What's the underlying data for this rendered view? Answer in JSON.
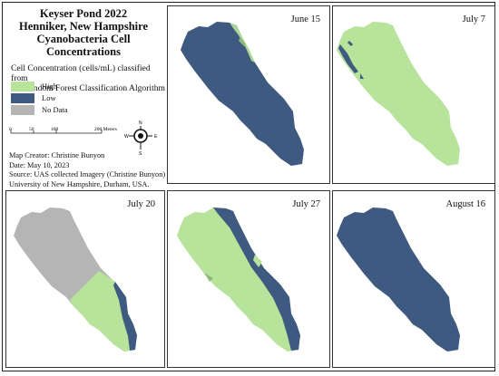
{
  "title_lines": [
    "Keyser Pond 2022",
    "Henniker, New Hampshire",
    "Cyanobacteria Cell Concentrations"
  ],
  "subtitle_lines": [
    "Cell Concentration (cells/mL) classified from",
    "the Random Forest Classification Algorithm"
  ],
  "legend": [
    {
      "label": "High",
      "color": "#b7e39a"
    },
    {
      "label": "Low",
      "color": "#3f5a80"
    },
    {
      "label": "No Data",
      "color": "#b5b5b5"
    }
  ],
  "scale": {
    "ticks": [
      "0",
      "50",
      "100",
      "200 Meters"
    ]
  },
  "north_arrow": {
    "n": "N",
    "s": "S",
    "e": "E",
    "w": "W",
    "icon": "compass-rose-icon"
  },
  "credits": [
    "Map Creator: Christine Bunyon",
    "Date: May 10, 2023",
    "Source: UAS collected Imagery (Christine Bunyon)",
    "University of New Hampshire, Durham, USA."
  ],
  "panels": [
    {
      "label": "June 15",
      "dominant": "Low"
    },
    {
      "label": "July 7",
      "dominant": "High"
    },
    {
      "label": "July 20",
      "dominant": "No Data"
    },
    {
      "label": "July 27",
      "dominant": "High"
    },
    {
      "label": "August 16",
      "dominant": "Low"
    }
  ],
  "colors": {
    "high": "#b7e39a",
    "low": "#3f5a80",
    "nodata": "#b5b5b5"
  }
}
